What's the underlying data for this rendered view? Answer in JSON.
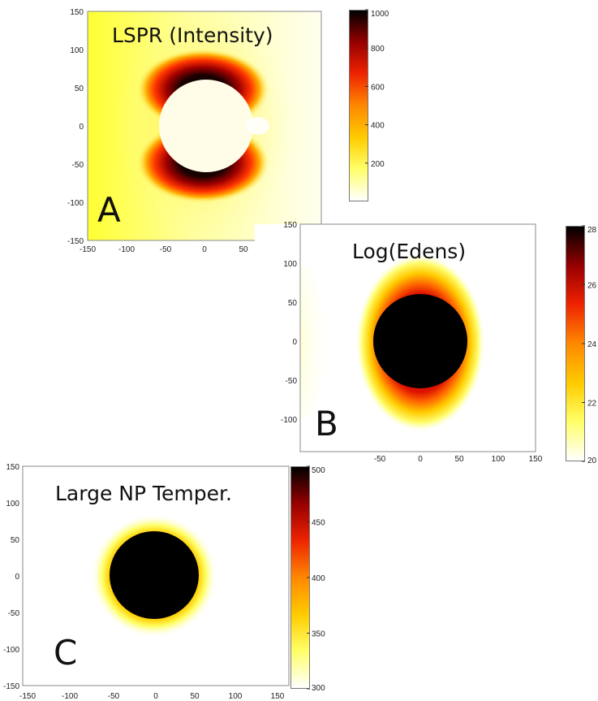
{
  "colors": {
    "colormap": [
      "#ffffff",
      "#ffff66",
      "#ffcc00",
      "#ff8800",
      "#ee2200",
      "#990000",
      "#000000"
    ],
    "axis_frame": "#888888"
  },
  "chart_data": [
    {
      "type": "heatmap",
      "letter": "A",
      "title": "LSPR (Intensity)",
      "xlim": [
        -150,
        150
      ],
      "ylim": [
        -150,
        150
      ],
      "xticks": [
        "-150",
        "-100",
        "-50",
        "0",
        "50"
      ],
      "yticks": [
        "150",
        "100",
        "50",
        "0",
        "-50",
        "-100",
        "-150"
      ],
      "colorbar": {
        "min": 0,
        "max": 1000,
        "ticks": [
          "1000",
          "800",
          "600",
          "400",
          "200"
        ]
      },
      "nanoparticle": {
        "center": [
          0,
          0
        ],
        "radius": 58
      }
    },
    {
      "type": "heatmap",
      "letter": "B",
      "title": "Log(Edens)",
      "xlim": [
        -150,
        150
      ],
      "ylim": [
        -150,
        150
      ],
      "xticks": [
        "-50",
        "0",
        "50",
        "100",
        "150"
      ],
      "yticks": [
        "150",
        "100",
        "50",
        "0",
        "-50",
        "-100"
      ],
      "colorbar": {
        "min": 20,
        "max": 28,
        "ticks": [
          "28",
          "26",
          "24",
          "22",
          "20"
        ]
      },
      "nanoparticle": {
        "center": [
          0,
          0
        ],
        "radius": 58
      }
    },
    {
      "type": "heatmap",
      "letter": "C",
      "title": "Large NP Temper.",
      "xlim": [
        -150,
        150
      ],
      "ylim": [
        -150,
        150
      ],
      "xticks": [
        "-150",
        "-100",
        "-50",
        "0",
        "50",
        "100",
        "150"
      ],
      "yticks": [
        "150",
        "100",
        "50",
        "0",
        "-50",
        "-100",
        "-150"
      ],
      "colorbar": {
        "min": 300,
        "max": 500,
        "ticks": [
          "500",
          "450",
          "400",
          "350",
          "300"
        ]
      },
      "nanoparticle": {
        "center": [
          0,
          0
        ],
        "radius": 58
      }
    }
  ]
}
